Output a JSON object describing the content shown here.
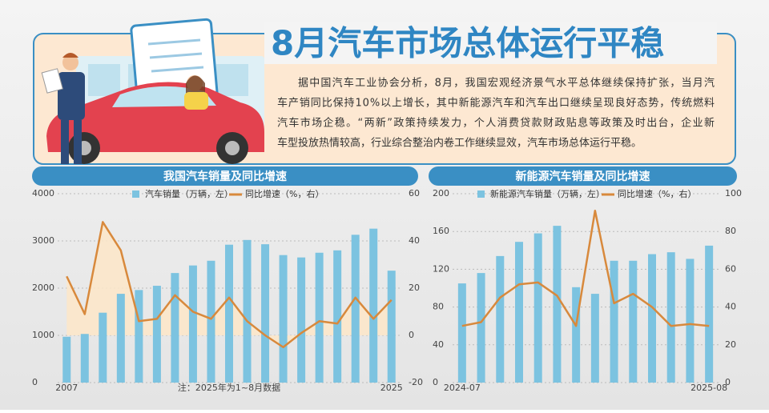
{
  "header": {
    "title": "8月汽车市场总体运行平稳",
    "paragraph_lines": [
      "据中国汽车工业协会分析，8月，我国宏观经济景气水平总体继续保持扩张，当月汽",
      "车产销同比保持10%以上增长，其中新能源汽车和汽车出口继续呈现良好态势，传统燃料",
      "汽车市场企稳。“两新”政策持续发力，个人消费贷款财政贴息等政策及时出台，企业新",
      "车型投放热情较高，行业综合整治内卷工作继续显效，汽车市场总体运行平稳。"
    ]
  },
  "chart_data": [
    {
      "type": "combo",
      "title": "我国汽车销量及同比增速",
      "note": "注：2025年为1~8月数据",
      "categories": [
        "2007",
        null,
        null,
        null,
        null,
        null,
        null,
        null,
        null,
        null,
        null,
        null,
        null,
        null,
        null,
        null,
        null,
        null,
        "2025"
      ],
      "series": [
        {
          "name": "汽车销量（万辆，左）",
          "color": "#7cc3e0",
          "mark": "bar",
          "values": [
            970,
            1030,
            1480,
            1880,
            1960,
            2050,
            2320,
            2480,
            2580,
            2920,
            3020,
            2930,
            2700,
            2650,
            2750,
            2800,
            3130,
            3260,
            2370
          ]
        },
        {
          "name": "同比增速（%，右）",
          "color": "#d8893c",
          "mark": "line",
          "axis": "y2",
          "fill": "#fde6c8",
          "values": [
            25,
            9,
            48,
            36,
            6,
            7,
            17,
            10,
            7,
            16,
            6,
            0,
            -5,
            1,
            6,
            5,
            16,
            7,
            15
          ]
        }
      ],
      "ylim": [
        0,
        4000
      ],
      "yticks": [
        0,
        1000,
        2000,
        3000,
        4000
      ],
      "y2lim": [
        -20,
        60
      ],
      "y2ticks": [
        -20,
        0,
        20,
        40,
        60
      ],
      "grid": true
    },
    {
      "type": "combo",
      "title": "新能源汽车销量及同比增速",
      "categories": [
        "2024-07",
        null,
        null,
        null,
        null,
        null,
        null,
        null,
        null,
        null,
        null,
        null,
        null,
        "2025-08"
      ],
      "series": [
        {
          "name": "新能源汽车销量（万辆，左）",
          "color": "#7cc3e0",
          "mark": "bar",
          "values": [
            105,
            116,
            134,
            149,
            158,
            166,
            101,
            94,
            129,
            129,
            136,
            138,
            131,
            145
          ]
        },
        {
          "name": "同比增速（%，右）",
          "color": "#d8893c",
          "mark": "line",
          "axis": "y2",
          "values": [
            30,
            32,
            45,
            52,
            53,
            46,
            30,
            91,
            42,
            47,
            40,
            30,
            31,
            30
          ]
        }
      ],
      "ylim": [
        0,
        200
      ],
      "yticks": [
        0,
        40,
        80,
        120,
        160,
        200
      ],
      "y2lim": [
        0,
        100
      ],
      "y2ticks": [
        0,
        20,
        40,
        60,
        80,
        100
      ],
      "grid": true
    }
  ]
}
